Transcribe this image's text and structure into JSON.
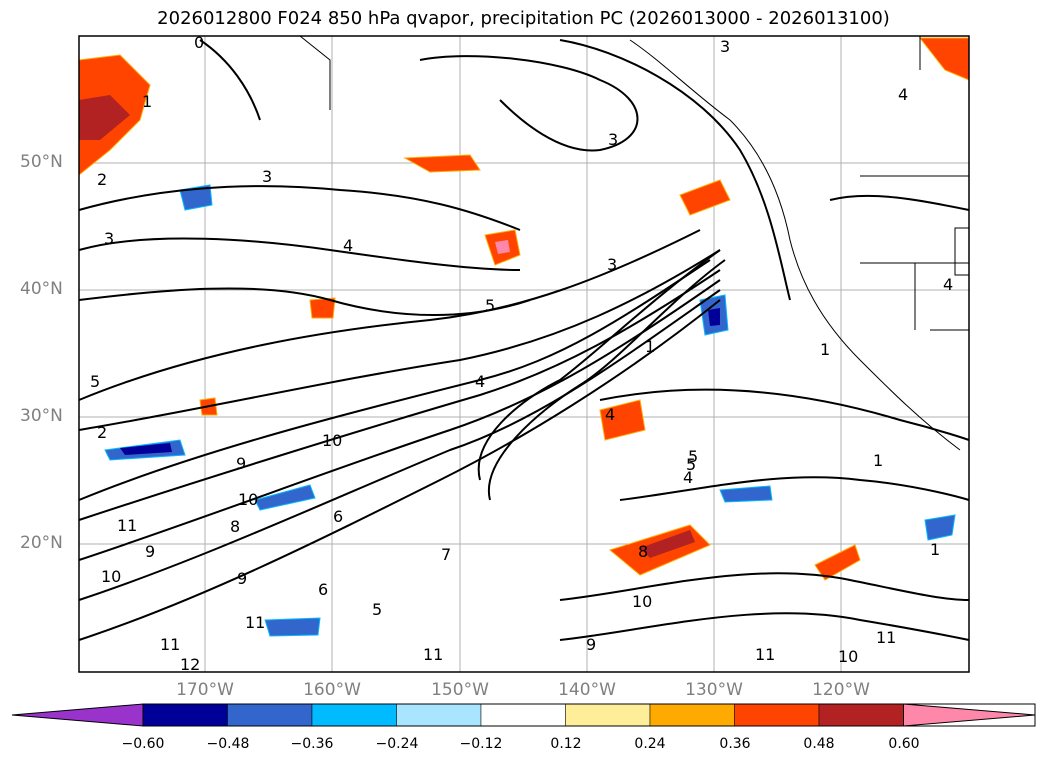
{
  "title": "2026012800 F024 850 hPa qvapor, precipitation PC (2026013000 - 2026013100)",
  "lat_labels": [
    "50°N",
    "40°N",
    "30°N",
    "20°N"
  ],
  "lon_labels": [
    "170°W",
    "160°W",
    "150°W",
    "140°W",
    "130°W",
    "120°W"
  ],
  "colorbar": {
    "colors": [
      "#9933cc",
      "#000099",
      "#3366cc",
      "#00bbff",
      "#aae5ff",
      "#ffffff",
      "#ffee99",
      "#ffaa00",
      "#ff4400",
      "#b22222",
      "#ff88aa"
    ],
    "tick_labels": [
      "−0.60",
      "−0.48",
      "−0.36",
      "−0.24",
      "−0.12",
      "0.12",
      "0.24",
      "0.36",
      "0.48",
      "0.60"
    ]
  },
  "contour_labels": [
    "0",
    "1",
    "2",
    "3",
    "3",
    "3",
    "4",
    "4",
    "5",
    "5",
    "5",
    "4",
    "2",
    "10",
    "9",
    "10",
    "11",
    "11",
    "8",
    "9",
    "10",
    "6",
    "7",
    "9",
    "6",
    "5",
    "11",
    "12",
    "11",
    "10",
    "9",
    "8",
    "1",
    "3",
    "4",
    "1",
    "3",
    "4",
    "11",
    "10",
    "11",
    "5",
    "4",
    "1",
    "1"
  ]
}
